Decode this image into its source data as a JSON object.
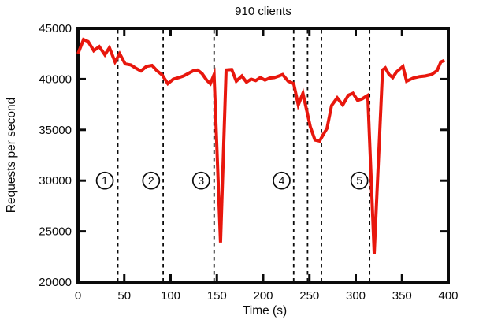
{
  "chart_data": {
    "type": "line",
    "title": "910 clients",
    "xlabel": "Time (s)",
    "ylabel": "Requests per second",
    "xlim": [
      0,
      400
    ],
    "ylim": [
      20000,
      45000
    ],
    "x_ticks": [
      0,
      50,
      100,
      150,
      200,
      250,
      300,
      350,
      400
    ],
    "y_ticks": [
      20000,
      25000,
      30000,
      35000,
      40000,
      45000
    ],
    "grid": false,
    "legend": "none",
    "background_color": "#ffffff",
    "axis_color": "#0b0b0b",
    "series": [
      {
        "name": "requests per second",
        "color": "#e8170d",
        "points": [
          [
            0,
            42500
          ],
          [
            6,
            43900
          ],
          [
            11,
            43700
          ],
          [
            17,
            42800
          ],
          [
            23,
            43200
          ],
          [
            29,
            42400
          ],
          [
            34,
            43100
          ],
          [
            40,
            41700
          ],
          [
            45,
            42500
          ],
          [
            51,
            41500
          ],
          [
            57,
            41400
          ],
          [
            63,
            41050
          ],
          [
            68,
            40800
          ],
          [
            74,
            41250
          ],
          [
            80,
            41350
          ],
          [
            85,
            40850
          ],
          [
            91,
            40400
          ],
          [
            97,
            39550
          ],
          [
            103,
            40000
          ],
          [
            109,
            40150
          ],
          [
            114,
            40300
          ],
          [
            120,
            40600
          ],
          [
            125,
            40850
          ],
          [
            129,
            40900
          ],
          [
            134,
            40550
          ],
          [
            139,
            39900
          ],
          [
            143,
            39550
          ],
          [
            147,
            40450
          ],
          [
            154,
            23900
          ],
          [
            160,
            40900
          ],
          [
            166,
            40950
          ],
          [
            171,
            39800
          ],
          [
            177,
            40300
          ],
          [
            182,
            39700
          ],
          [
            187,
            40000
          ],
          [
            192,
            39850
          ],
          [
            197,
            40150
          ],
          [
            202,
            39900
          ],
          [
            207,
            40100
          ],
          [
            212,
            40150
          ],
          [
            217,
            40300
          ],
          [
            221,
            40450
          ],
          [
            227,
            39800
          ],
          [
            233,
            39550
          ],
          [
            238,
            37450
          ],
          [
            243,
            38600
          ],
          [
            251,
            35300
          ],
          [
            256,
            34000
          ],
          [
            261,
            33900
          ],
          [
            265,
            34550
          ],
          [
            269,
            35150
          ],
          [
            274,
            37400
          ],
          [
            280,
            38150
          ],
          [
            286,
            37450
          ],
          [
            292,
            38400
          ],
          [
            297,
            38600
          ],
          [
            302,
            37900
          ],
          [
            307,
            38050
          ],
          [
            313,
            38400
          ],
          [
            320,
            22800
          ],
          [
            329,
            40900
          ],
          [
            332,
            41100
          ],
          [
            336,
            40450
          ],
          [
            340,
            40150
          ],
          [
            344,
            40700
          ],
          [
            351,
            41250
          ],
          [
            355,
            39800
          ],
          [
            362,
            40100
          ],
          [
            369,
            40250
          ],
          [
            375,
            40300
          ],
          [
            382,
            40450
          ],
          [
            388,
            40850
          ],
          [
            392,
            41700
          ],
          [
            396,
            41850
          ]
        ]
      }
    ],
    "event_lines": {
      "style": "dashed",
      "color": "#0b0b0b",
      "x_values": [
        43,
        92,
        147,
        233,
        248,
        263,
        315
      ]
    },
    "annotations": [
      {
        "label": "1",
        "x": 29,
        "y": 30000
      },
      {
        "label": "2",
        "x": 79,
        "y": 30000
      },
      {
        "label": "3",
        "x": 133,
        "y": 30000
      },
      {
        "label": "4",
        "x": 220,
        "y": 30000
      },
      {
        "label": "5",
        "x": 304,
        "y": 30000
      }
    ]
  }
}
